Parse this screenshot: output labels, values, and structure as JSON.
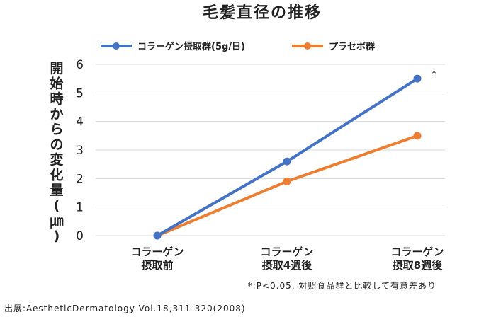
{
  "chart_data": {
    "type": "line",
    "title": "毛髪直径の推移",
    "categories": [
      [
        "コラーゲン",
        "摂取前"
      ],
      [
        "コラーゲン",
        "摂取4週後"
      ],
      [
        "コラーゲン",
        "摂取8週後"
      ]
    ],
    "series": [
      {
        "name": "コラーゲン摂取群(5g/日)",
        "values": [
          0,
          2.6,
          5.5
        ],
        "color": "#4472C4"
      },
      {
        "name": "プラセボ群",
        "values": [
          0,
          1.9,
          3.5
        ],
        "color": "#ED7D31"
      }
    ],
    "ylabel": [
      "開",
      "始",
      "時",
      "か",
      "ら",
      "の",
      "変",
      "化",
      "量",
      "(",
      "㎛",
      ")"
    ],
    "ylim": [
      0,
      6
    ],
    "yticks": [
      0,
      1,
      2,
      3,
      4,
      5,
      6
    ],
    "grid": true,
    "legend": "top",
    "significance_mark": "*",
    "note": "*:P<0.05, 対照食品群と比較して有意差あり"
  },
  "source": "出展:AestheticDermatology Vol.18,311-320(2008)"
}
